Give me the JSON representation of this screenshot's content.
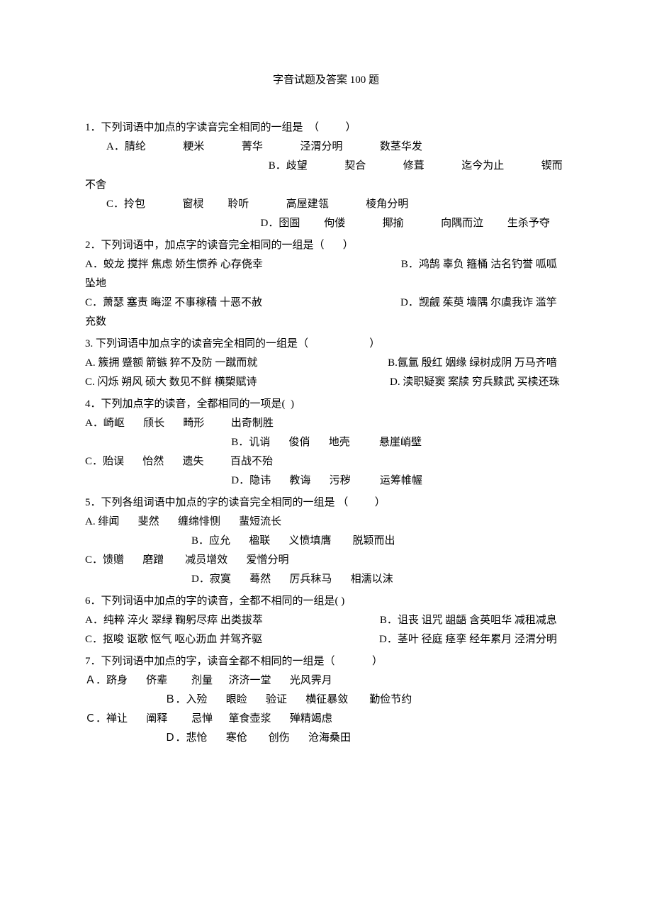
{
  "title": "字音试题及答案 100 题",
  "questions": [
    {
      "stem": "1．下列词语中加点的字读音完全相同的一组是  （          ）",
      "options": [
        "        A．腈纶              粳米              菁华              泾渭分明              数茎华发",
        "                                                                     B．歧望              契合              修葺              迄今为止              锲而不舍",
        "        C．拎包              窗棂         聆听              高屋建瓴              棱角分明",
        "                                                                  D．囹圄         佝偻              揶揄              向隅而泣         生杀予夺"
      ]
    },
    {
      "stem": "2．下列词语中，加点字的读音完全相同的一组是（       ）",
      "options": [
        "A．蛟龙 搅拌 焦虑 娇生惯养 心存侥幸                                                    B．鸿鹄 辜负 箍桶 沽名钓誉 呱呱坠地",
        "C．萧瑟 塞责 晦涩 不事稼穑 十恶不赦                                                    D．觊觎 茱萸 墙隅 尔虞我诈 滥竽充数"
      ]
    },
    {
      "stem": "3. 下列词语中加点字的读音完全相同的一组是（                       ）",
      "options": [
        "A. 簇拥 蹙额 箭镞 猝不及防 一蹴而就                                                 B.氤氲 殷红 姻缘 绿树成阴 万马齐喑",
        "C. 闪烁 朔风 硕大 数见不鲜 横槊赋诗                                                  D. 渎职疑窦 案牍 穷兵黩武 买椟还珠"
      ]
    },
    {
      "stem": "4．下列加点字的读音，全都相同的一项是(  )",
      "options": [
        "A．崎岖       颀长       畸形          出奇制胜",
        "                                                       B．讥诮       俊俏       地壳           悬崖峭壁",
        "C．贻误       怡然       遗失          百战不殆",
        "                                                       D．隐讳       教诲       污秽           运筹帷幄"
      ]
    },
    {
      "stem": "5．下列各组词语中加点的字的读音完全相同的一组是 （          ）",
      "options": [
        "A. 绯闻       斐然       缠绵悱恻       蜚短流长",
        "                                        B．应允       楹联       义愤填膺        脱颖而出",
        "C．馈赠       磨蹭        减员增效       爱憎分明",
        "                                        D．寂寞       蓦然       厉兵秣马       相濡以沫"
      ]
    },
    {
      "stem": "6．下列词语中加点的字的读音，全都不相同的一组是( )",
      "options": [
        "A．纯粹 淬火 翠绿 鞠躬尽瘁 出类拔萃                                            B．诅丧 诅咒 龃龉 含英咀华 减租减息",
        "C．抠唆 讴歌 怄气 呕心沥血 并驾齐驱                                            D．茎叶 径庭 痉挛 经年累月 泾渭分明"
      ]
    },
    {
      "stem": "7．下列词语中加点的字，读音全都不相同的一组是（              ）",
      "options": [
        "Ａ．跻身       侪辈         剂量      济济一堂       光风霁月",
        "                              Ｂ．入殓       眼睑       验证       横征暴敛        勤俭节约",
        "Ｃ．禅让       阐释         忌惮      箪食壶浆       殚精竭虑",
        "                              Ｄ．悲怆       寒伧        创伤       沧海桑田"
      ]
    }
  ]
}
